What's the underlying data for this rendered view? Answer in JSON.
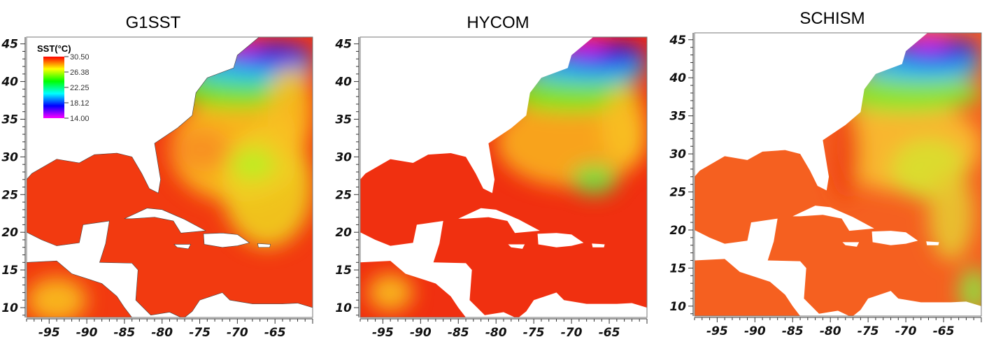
{
  "figure": {
    "panels": [
      {
        "title": "G1SST",
        "has_colorbar": true
      },
      {
        "title": "HYCOM",
        "has_colorbar": false
      },
      {
        "title": "SCHISM",
        "has_colorbar": false
      }
    ],
    "x_axis": {
      "ticks": [
        "-95",
        "-90",
        "-85",
        "-80",
        "-75",
        "-70",
        "-65"
      ],
      "range": [
        -98,
        -60
      ]
    },
    "y_axis": {
      "ticks": [
        "45",
        "40",
        "35",
        "30",
        "25",
        "20",
        "15",
        "10"
      ],
      "range": [
        8.7,
        45.9
      ]
    },
    "colorbar": {
      "title": "SST(°C)",
      "labels": [
        "30.50",
        "26.38",
        "22.25",
        "18.12",
        "14.00"
      ],
      "range": [
        14.0,
        30.5
      ],
      "colormap": [
        "#ff00ff",
        "#0000ff",
        "#00ffff",
        "#00ff00",
        "#ffff00",
        "#ff0000"
      ]
    },
    "colors": {
      "land": "#ffffff",
      "warm": "#f03010",
      "frame": "#777777"
    }
  }
}
